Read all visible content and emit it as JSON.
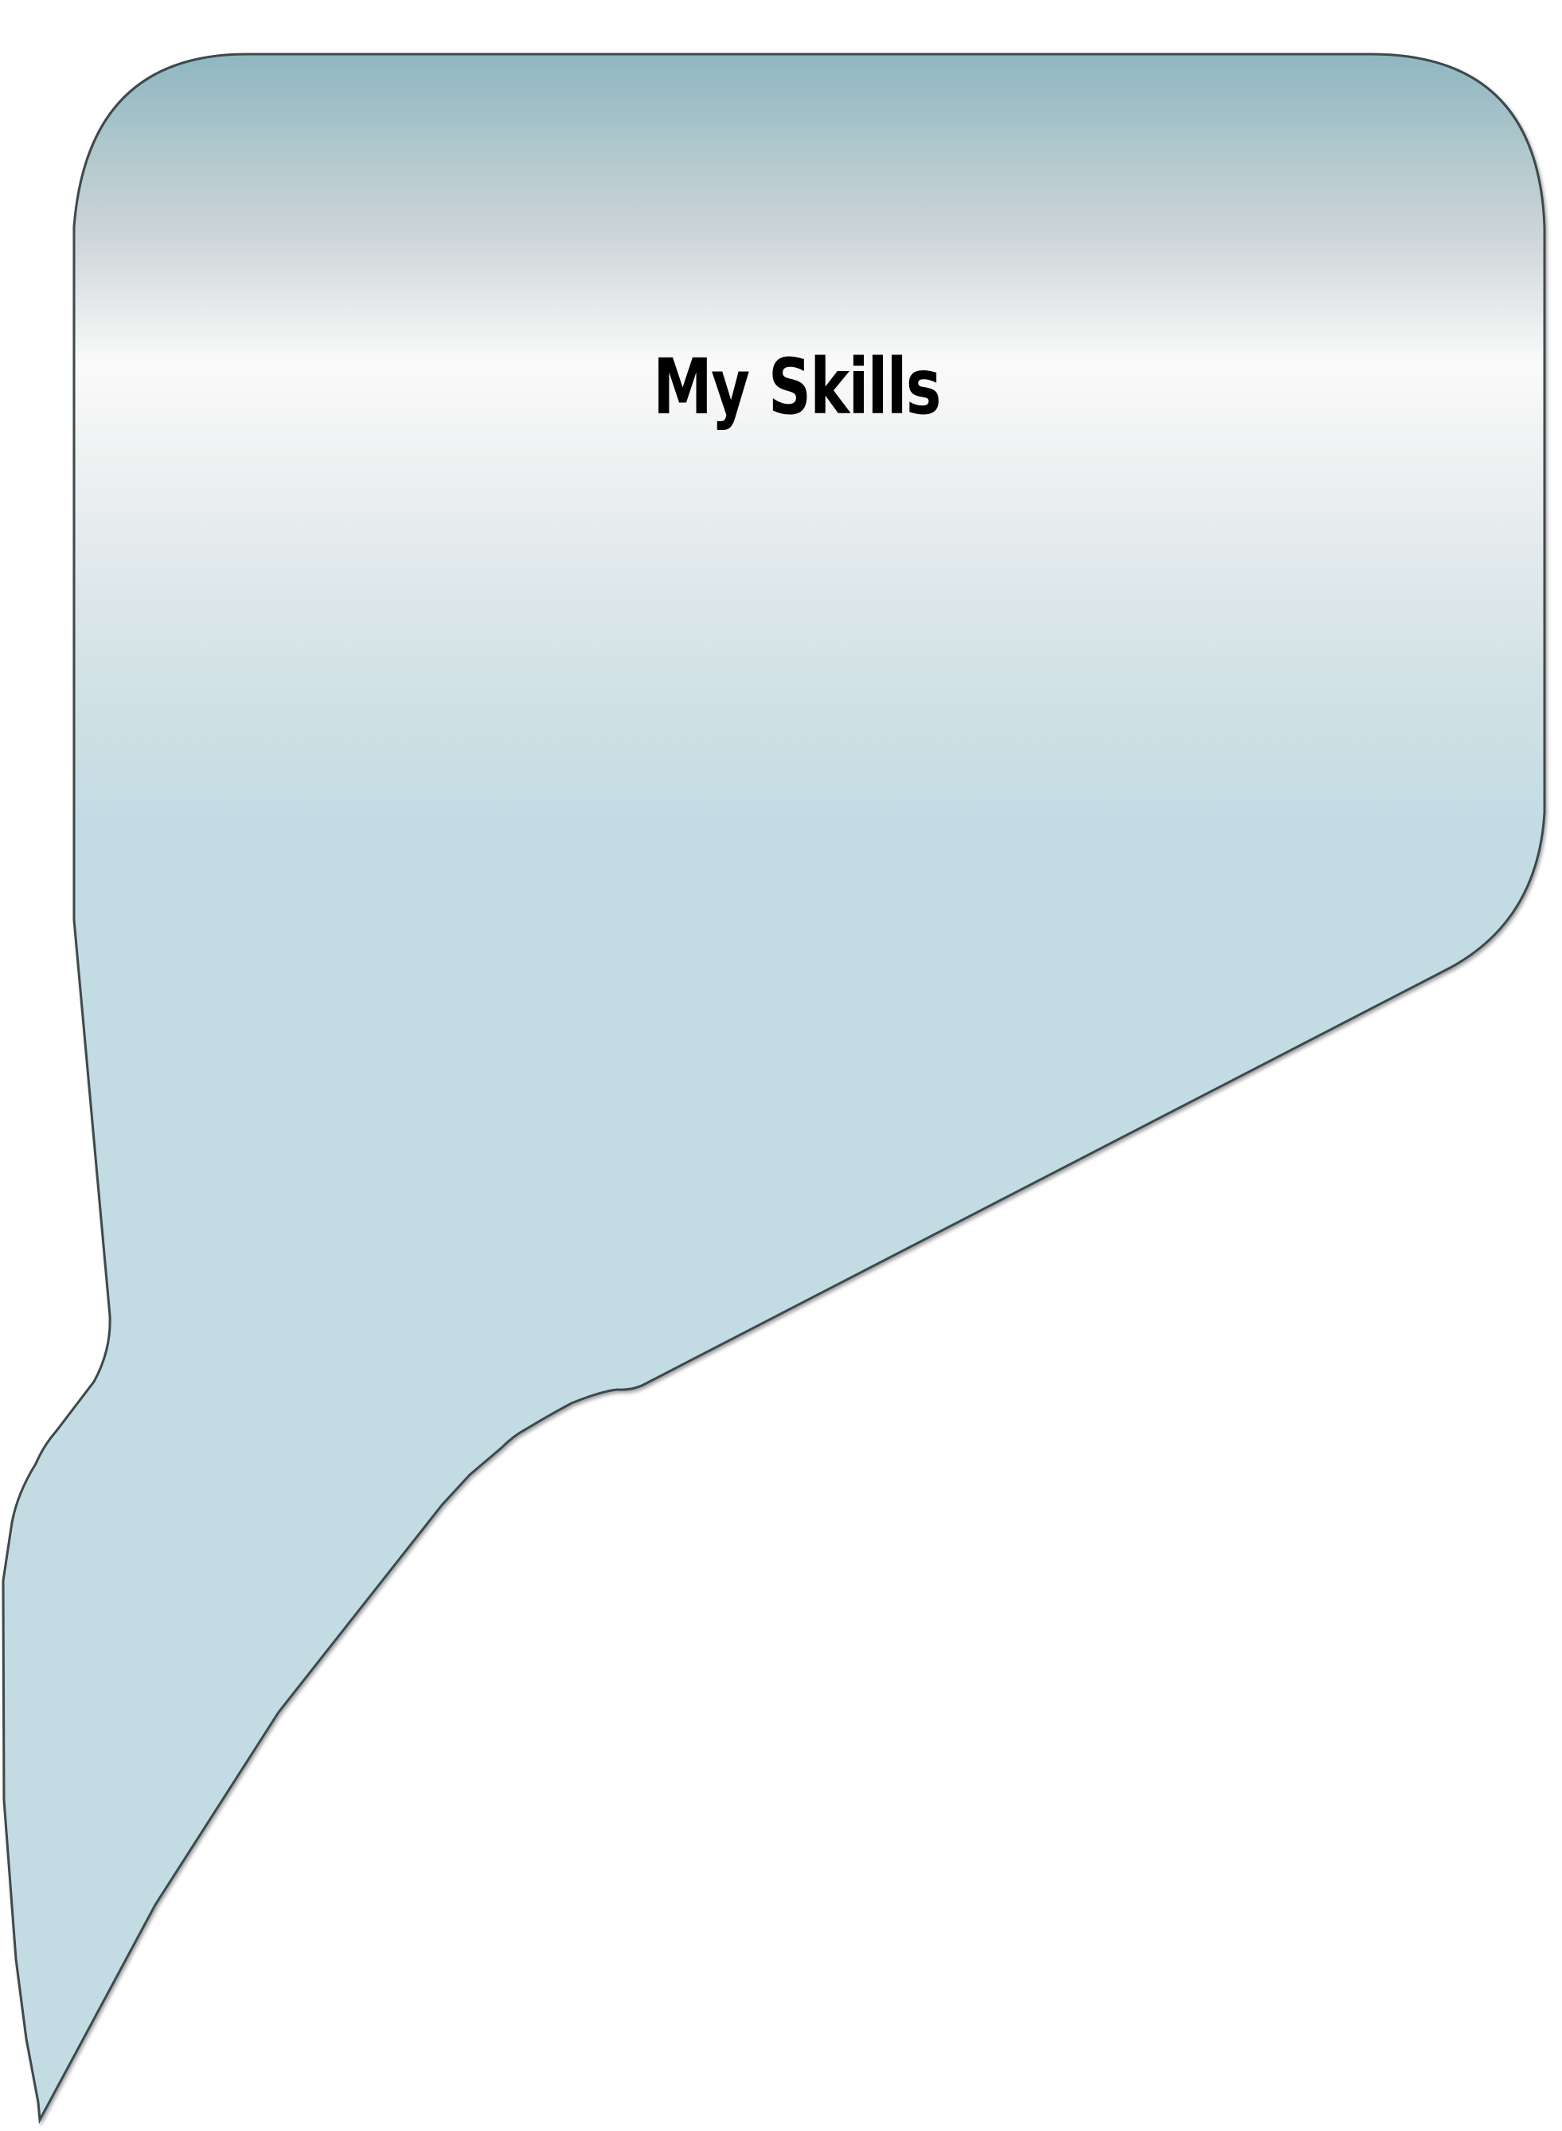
{
  "panel": {
    "title": "My Skills"
  },
  "colors": {
    "panel_top": "#8fb7c0",
    "panel_highlight": "#ffffff",
    "panel_body": "#c3dce3",
    "outline": "#3c4a4e",
    "title_text": "#000000"
  }
}
